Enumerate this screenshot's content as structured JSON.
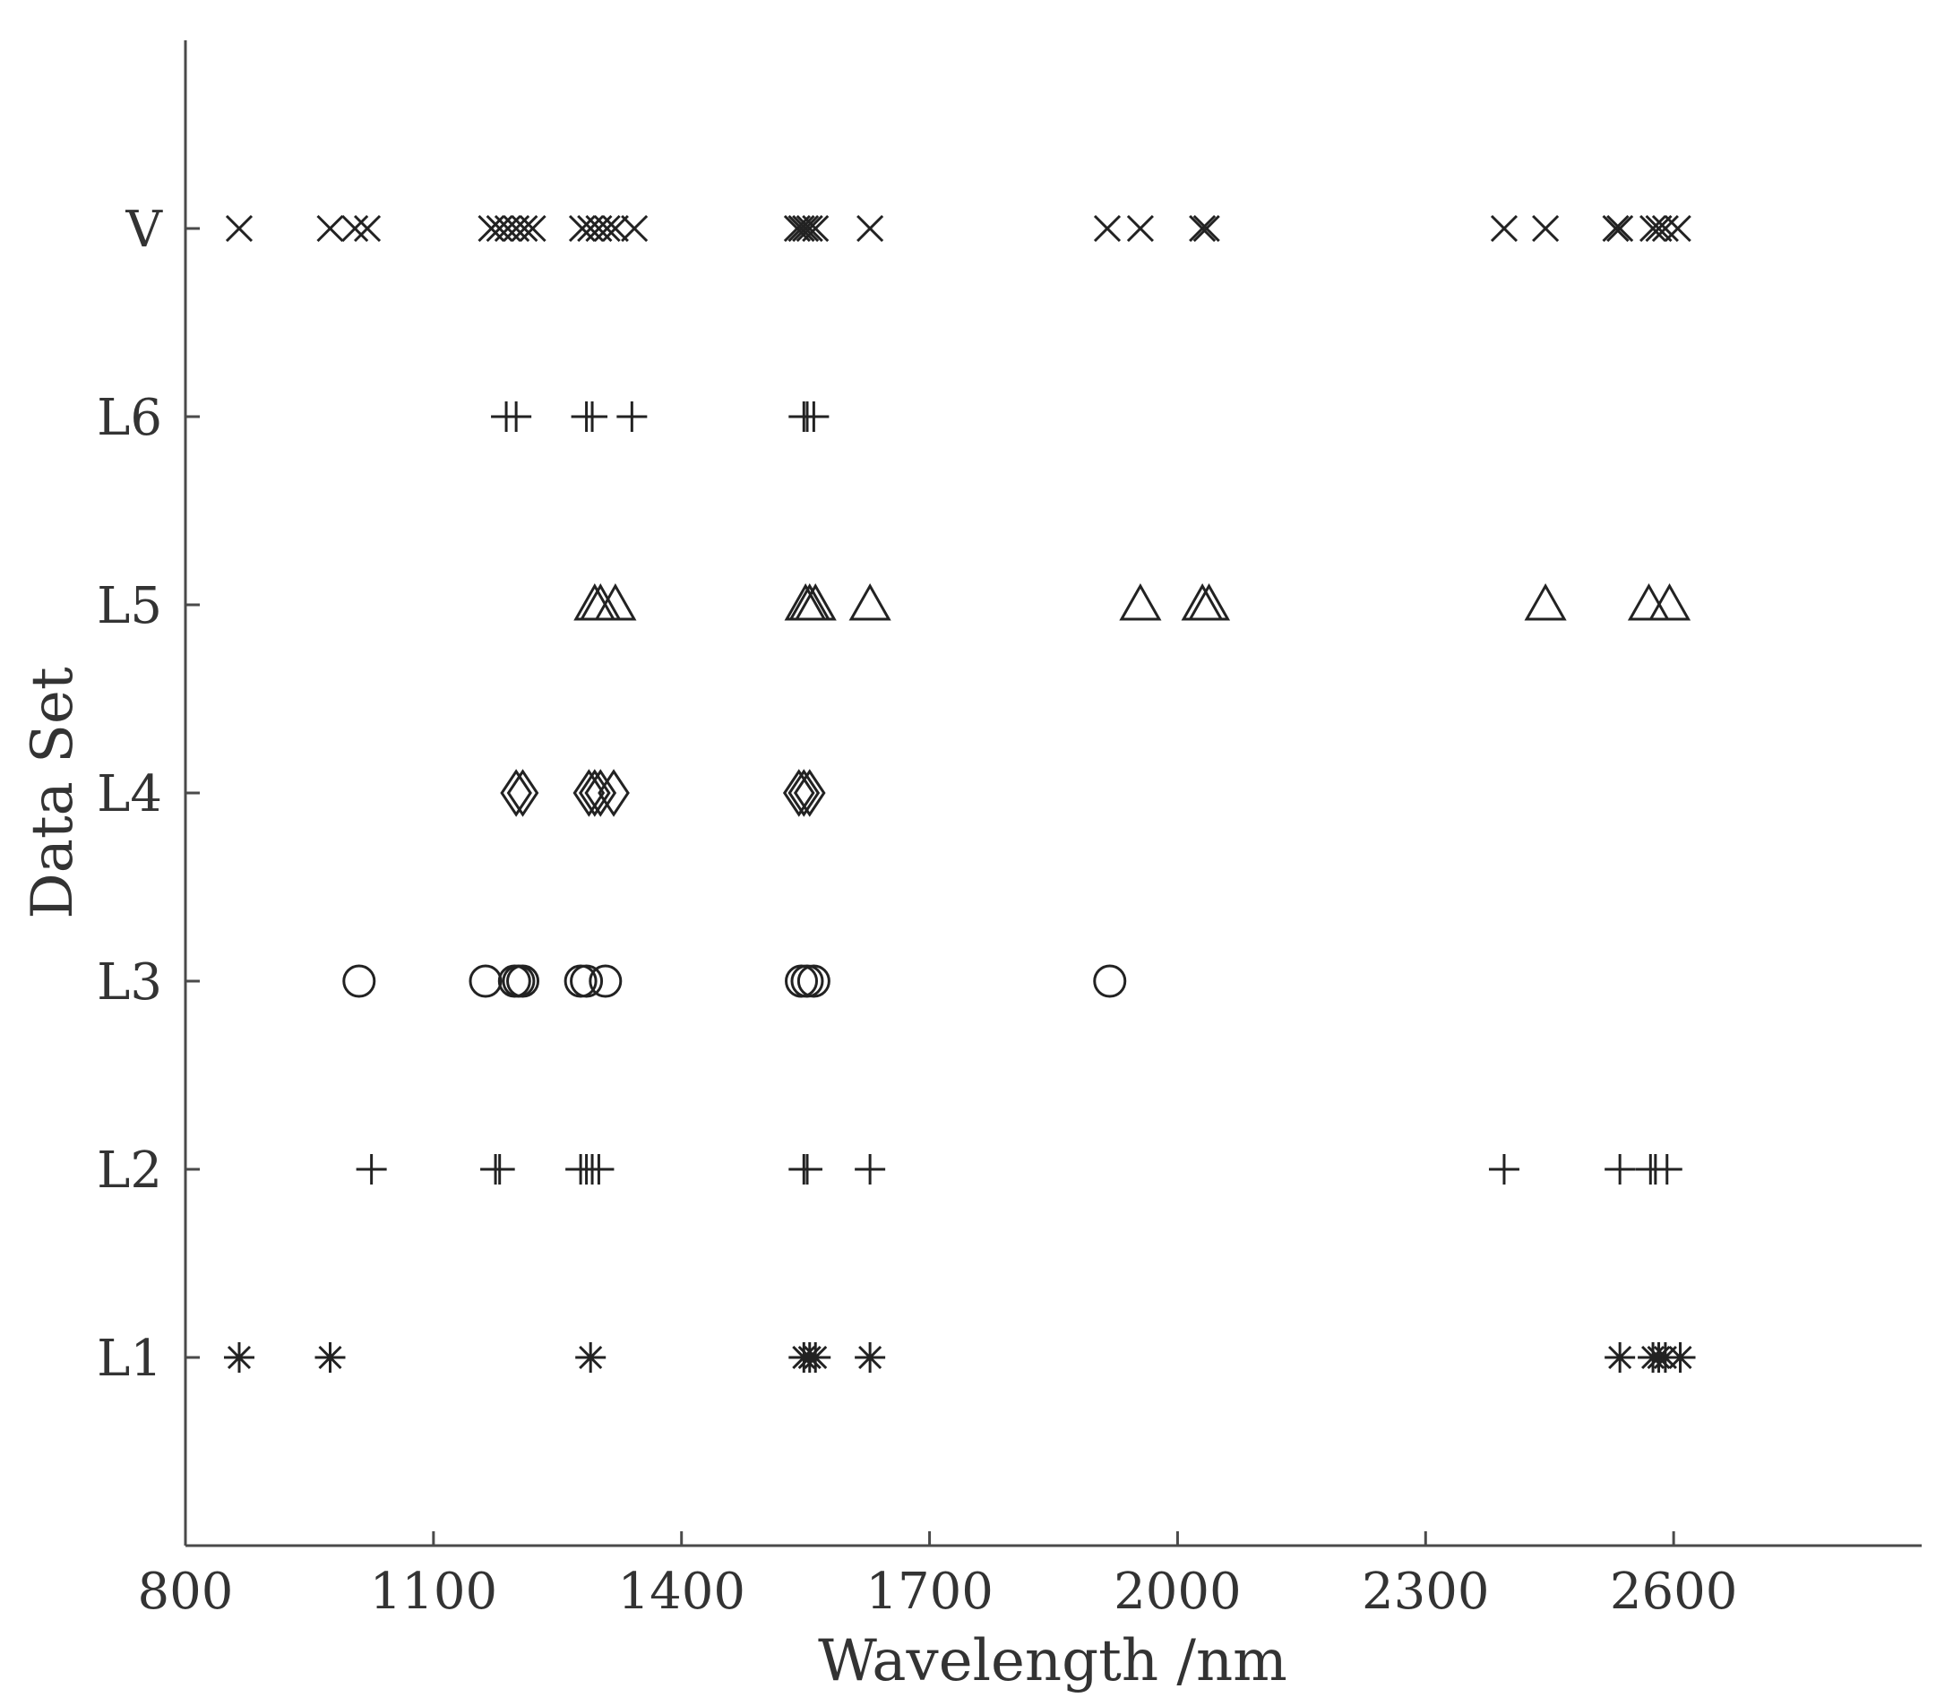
{
  "chart_data": {
    "type": "scatter",
    "title": "",
    "xlabel": "Wavelength /nm",
    "ylabel": "Data Set",
    "xlim": [
      800,
      2900
    ],
    "xticks": [
      800,
      1100,
      1400,
      1700,
      2000,
      2300,
      2600
    ],
    "categories": [
      "L1",
      "L2",
      "L3",
      "L4",
      "L5",
      "L6",
      "V"
    ],
    "grid": false,
    "legend": "none",
    "series": [
      {
        "category": "L1",
        "marker": "asterisk",
        "x": [
          865,
          975,
          1290,
          1548,
          1555,
          1562,
          1628,
          2535,
          2575,
          2582,
          2590,
          2608
        ]
      },
      {
        "category": "L2",
        "marker": "plus",
        "x": [
          1025,
          1175,
          1180,
          1278,
          1285,
          1292,
          1300,
          1548,
          1552,
          1628,
          2395,
          2535,
          2572,
          2578,
          2592
        ]
      },
      {
        "category": "L3",
        "marker": "circle",
        "x": [
          1010,
          1163,
          1198,
          1203,
          1208,
          1278,
          1285,
          1308,
          1545,
          1552,
          1560,
          1918
        ]
      },
      {
        "category": "L4",
        "marker": "diamond",
        "x": [
          1200,
          1208,
          1288,
          1295,
          1302,
          1318,
          1542,
          1548,
          1555
        ]
      },
      {
        "category": "L5",
        "marker": "triangle",
        "x": [
          1295,
          1302,
          1320,
          1550,
          1555,
          1562,
          1628,
          1955,
          2030,
          2038,
          2445,
          2570,
          2595
        ]
      },
      {
        "category": "L6",
        "marker": "plus",
        "x": [
          1188,
          1200,
          1285,
          1292,
          1340,
          1548,
          1552,
          1560
        ]
      },
      {
        "category": "V",
        "marker": "cross",
        "x": [
          865,
          975,
          1005,
          1020,
          1170,
          1180,
          1190,
          1200,
          1210,
          1220,
          1280,
          1290,
          1300,
          1310,
          1320,
          1343,
          1540,
          1545,
          1550,
          1555,
          1562,
          1628,
          1915,
          1955,
          2030,
          2035,
          2395,
          2445,
          2530,
          2535,
          2575,
          2582,
          2590,
          2605
        ]
      }
    ]
  }
}
